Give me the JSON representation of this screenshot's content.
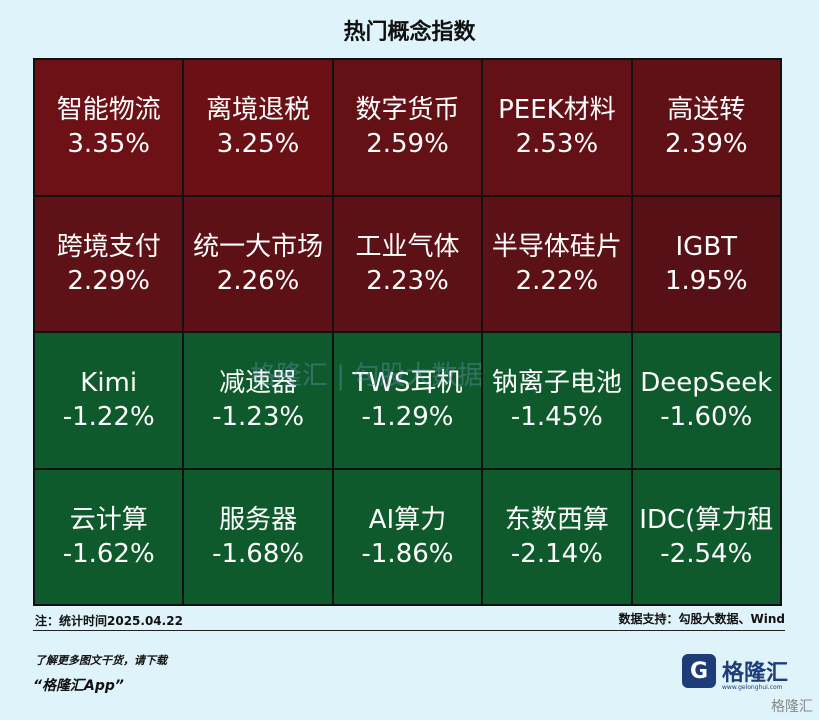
{
  "title": "热门概念指数",
  "note": "注：统计时间2025.04.22",
  "source": "数据支持：勾股大数据、Wind",
  "watermark": "格隆汇 | 勾股大数据",
  "promo_line1": "了解更多图文干货，请下载",
  "promo_line2": "“格隆汇App”",
  "logo": {
    "text": "格隆汇",
    "site": "www.gelonghui.com"
  },
  "corner_watermark": "格隆汇",
  "chart_data": {
    "type": "heatmap",
    "title": "热门概念指数",
    "unit": "%",
    "colors": {
      "up": "#7a1418",
      "down": "#10502a"
    },
    "items": [
      {
        "name": "智能物流",
        "value": 3.35,
        "label": "3.35%",
        "color": "#6e1116"
      },
      {
        "name": "离境退税",
        "value": 3.25,
        "label": "3.25%",
        "color": "#6b1116"
      },
      {
        "name": "数字货币",
        "value": 2.59,
        "label": "2.59%",
        "color": "#641116"
      },
      {
        "name": "PEEK材料",
        "value": 2.53,
        "label": "2.53%",
        "color": "#631116"
      },
      {
        "name": "高送转",
        "value": 2.39,
        "label": "2.39%",
        "color": "#601116"
      },
      {
        "name": "跨境支付",
        "value": 2.29,
        "label": "2.29%",
        "color": "#5e1116"
      },
      {
        "name": "统一大市场",
        "value": 2.26,
        "label": "2.26%",
        "color": "#5d1116"
      },
      {
        "name": "工业气体",
        "value": 2.23,
        "label": "2.23%",
        "color": "#5c1116"
      },
      {
        "name": "半导体硅片",
        "value": 2.22,
        "label": "2.22%",
        "color": "#5c1116"
      },
      {
        "name": "IGBT",
        "value": 1.95,
        "label": "1.95%",
        "color": "#571116"
      },
      {
        "name": "Kimi",
        "value": -1.22,
        "label": "-1.22%",
        "color": "#0f5a2c"
      },
      {
        "name": "减速器",
        "value": -1.23,
        "label": "-1.23%",
        "color": "#0f5a2c"
      },
      {
        "name": "TWS耳机",
        "value": -1.29,
        "label": "-1.29%",
        "color": "#0f5a2c"
      },
      {
        "name": "钠离子电池",
        "value": -1.45,
        "label": "-1.45%",
        "color": "#0f5a2c"
      },
      {
        "name": "DeepSeek",
        "value": -1.6,
        "label": "-1.60%",
        "color": "#0f5a2c"
      },
      {
        "name": "云计算",
        "value": -1.62,
        "label": "-1.62%",
        "color": "#0f5a2c"
      },
      {
        "name": "服务器",
        "value": -1.68,
        "label": "-1.68%",
        "color": "#0f5a2c"
      },
      {
        "name": "AI算力",
        "value": -1.86,
        "label": "-1.86%",
        "color": "#0f5a2c"
      },
      {
        "name": "东数西算",
        "value": -2.14,
        "label": "-2.14%",
        "color": "#0f5a2c"
      },
      {
        "name": "IDC(算力租",
        "value": -2.54,
        "label": "-2.54%",
        "color": "#0f5a2c"
      }
    ]
  }
}
